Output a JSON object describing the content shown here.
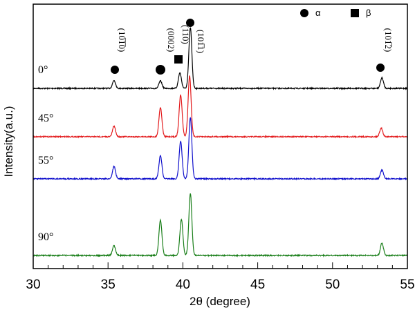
{
  "chart_data": {
    "type": "line",
    "xlabel": "2θ (degree)",
    "ylabel": "Intensity(a.u.)",
    "xlim": [
      30,
      55
    ],
    "xticks": [
      "30",
      "35",
      "40",
      "45",
      "50",
      "55"
    ],
    "x_minor_step": 1,
    "legend": [
      {
        "marker": "circle",
        "label": "α"
      },
      {
        "marker": "square",
        "label": "β"
      }
    ],
    "annotations": [
      {
        "text": "(10̅1̅0)",
        "x": 35.4,
        "marker": "circle"
      },
      {
        "text": "(0002)",
        "x": 38.5,
        "marker": "circle"
      },
      {
        "text": "(110)",
        "x": 39.8,
        "marker": "square"
      },
      {
        "text": "(101̅1)",
        "x": 40.5,
        "marker": "circle"
      },
      {
        "text": "(101̅2)",
        "x": 53.3,
        "marker": "circle"
      }
    ],
    "series": [
      {
        "name": "0°",
        "color": "#000000",
        "offset": 3,
        "peaks": [
          [
            35.4,
            0.13
          ],
          [
            38.5,
            0.12
          ],
          [
            39.8,
            0.25
          ],
          [
            40.5,
            0.98
          ],
          [
            53.3,
            0.17
          ]
        ]
      },
      {
        "name": "45°",
        "color": "#e31a1c",
        "offset": 2,
        "peaks": [
          [
            35.4,
            0.17
          ],
          [
            38.5,
            0.47
          ],
          [
            39.85,
            0.67
          ],
          [
            40.45,
            0.98
          ],
          [
            53.25,
            0.14
          ]
        ]
      },
      {
        "name": "55°",
        "color": "#1010cc",
        "offset": 1,
        "peaks": [
          [
            35.4,
            0.2
          ],
          [
            38.5,
            0.37
          ],
          [
            39.85,
            0.6
          ],
          [
            40.5,
            0.99
          ],
          [
            53.3,
            0.14
          ]
        ]
      },
      {
        "name": "90°",
        "color": "#1a7f1a",
        "offset": 0,
        "peaks": [
          [
            35.4,
            0.16
          ],
          [
            38.5,
            0.57
          ],
          [
            39.9,
            0.58
          ],
          [
            40.5,
            1.0
          ],
          [
            53.3,
            0.2
          ]
        ]
      }
    ]
  }
}
